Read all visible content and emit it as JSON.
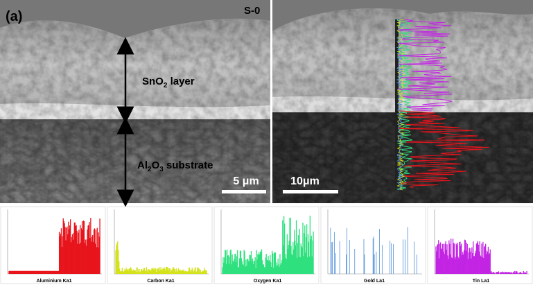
{
  "panel_label": "(a)",
  "sample": "S-0",
  "left_image": {
    "layer_label": [
      "SnO",
      "2",
      " layer"
    ],
    "substrate_label": [
      "Al",
      "2",
      "O",
      "3",
      " substrate"
    ],
    "scale_bar": "5 μm"
  },
  "right_image": {
    "scale_bar": "10μm"
  },
  "spectra": [
    {
      "label": "Aluminium Ka1",
      "color": "#e8141c"
    },
    {
      "label": "Carbon Ka1",
      "color": "#d4e21a"
    },
    {
      "label": "Oxygen Ka1",
      "color": "#2ee07e"
    },
    {
      "label": "Gold La1",
      "color": "#4f8fd8"
    },
    {
      "label": "Tin La1",
      "color": "#c324e4"
    }
  ]
}
